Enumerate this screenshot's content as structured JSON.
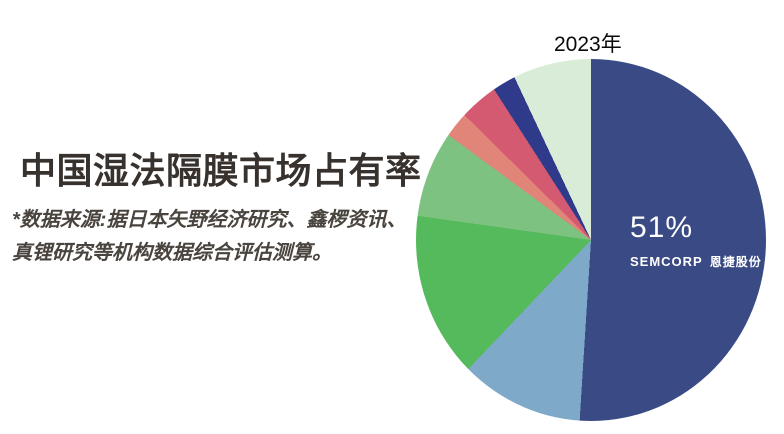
{
  "page": {
    "background": "#ffffff"
  },
  "left_panel": {
    "title": "中国湿法隔膜市场占有率",
    "source_note_line1": "*数据来源:据日本矢野经济研究、鑫椤资讯、",
    "source_note_line2": "真锂研究等机构数据综合评估测算。"
  },
  "chart_data": {
    "type": "pie",
    "title": "2023年",
    "start_angle_deg": 0,
    "clockwise": true,
    "legend": "none",
    "slices": [
      {
        "label": "SEMCORP 恩捷股份",
        "value": 51.0,
        "color": "#3A4A84"
      },
      {
        "label": "",
        "value": 11.1,
        "color": "#7FA9C9"
      },
      {
        "label": "",
        "value": 15.1,
        "color": "#55BA5B"
      },
      {
        "label": "",
        "value": 7.9,
        "color": "#7DC280"
      },
      {
        "label": "",
        "value": 2.3,
        "color": "#E08577"
      },
      {
        "label": "",
        "value": 3.5,
        "color": "#D45A72"
      },
      {
        "label": "",
        "value": 2.1,
        "color": "#2F3B8A"
      },
      {
        "label": "",
        "value": 7.0,
        "color": "#D9ECD8"
      }
    ],
    "labels_on_chart": {
      "share": "51%",
      "logo_latin": "SEMCORP",
      "logo_cn": "恩捷股份"
    }
  }
}
